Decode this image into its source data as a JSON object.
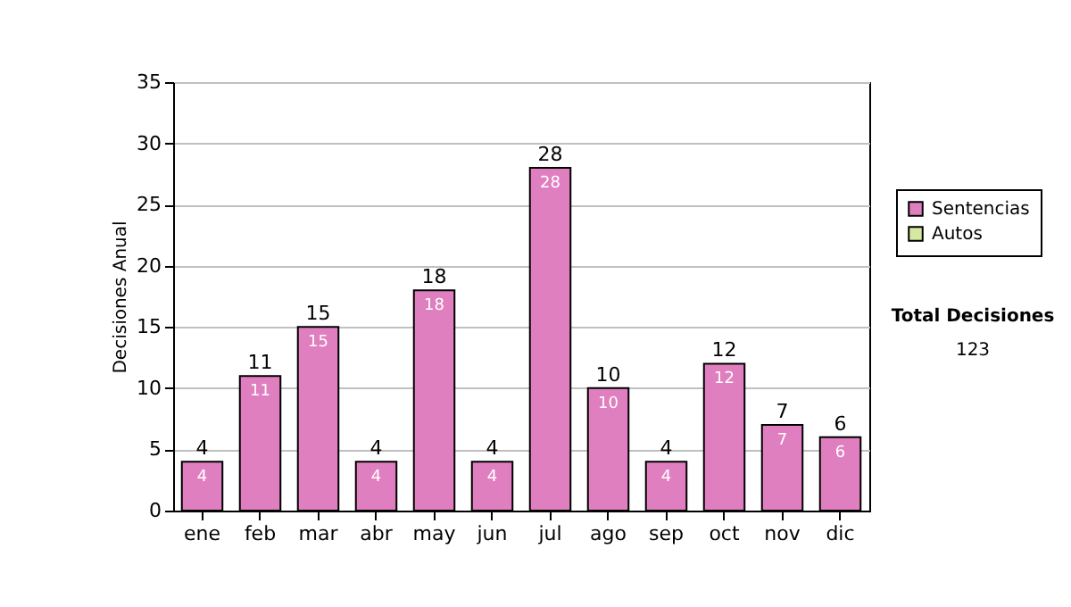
{
  "chart_data": {
    "type": "bar",
    "stacked": true,
    "ylabel": "Decisiones Anual",
    "categories": [
      "ene",
      "feb",
      "mar",
      "abr",
      "may",
      "jun",
      "jul",
      "ago",
      "sep",
      "oct",
      "nov",
      "dic"
    ],
    "series": [
      {
        "name": "Sentencias",
        "color": "#e07fc0",
        "values": [
          4,
          11,
          15,
          4,
          18,
          4,
          28,
          10,
          4,
          12,
          7,
          6
        ],
        "value_labels": [
          "4",
          "11",
          "15",
          "4",
          "18",
          "4",
          "28",
          "10",
          "4",
          "12",
          "7",
          "6"
        ]
      },
      {
        "name": "Autos",
        "color": "#d4e8a0",
        "values": [
          0,
          0,
          0,
          0,
          0,
          0,
          0,
          0,
          0,
          0,
          0,
          0
        ],
        "value_labels": [
          null,
          null,
          null,
          null,
          null,
          null,
          null,
          null,
          null,
          null,
          null,
          null
        ]
      }
    ],
    "totals": [
      "4",
      "11",
      "15",
      "4",
      "18",
      "4",
      "28",
      "10",
      "4",
      "12",
      "7",
      "6"
    ],
    "ylim": [
      0,
      35
    ],
    "yticks": [
      0,
      5,
      10,
      15,
      20,
      25,
      30,
      35
    ],
    "grid": "y",
    "legend": "right",
    "annotations": [
      "Total Decisiones",
      "123"
    ]
  }
}
